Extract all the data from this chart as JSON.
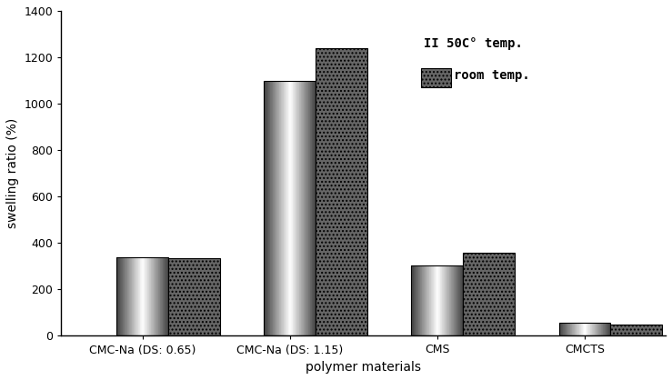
{
  "categories": [
    "CMC-Na (DS: 0.65)",
    "CMC-Na (DS: 1.15)",
    "CMS",
    "CMCTS"
  ],
  "values_50": [
    340,
    1100,
    305,
    55
  ],
  "values_room": [
    335,
    1240,
    360,
    50
  ],
  "ylabel": "swelling ratio (%)",
  "xlabel": "polymer materials",
  "ylim": [
    0,
    1400
  ],
  "yticks": [
    0,
    200,
    400,
    600,
    800,
    1000,
    1200,
    1400
  ],
  "bar_width": 0.35,
  "background_color": "#ffffff",
  "legend_label_50": "50C° temp.",
  "legend_label_room": "room temp.",
  "axis_fontsize": 10,
  "tick_fontsize": 9
}
